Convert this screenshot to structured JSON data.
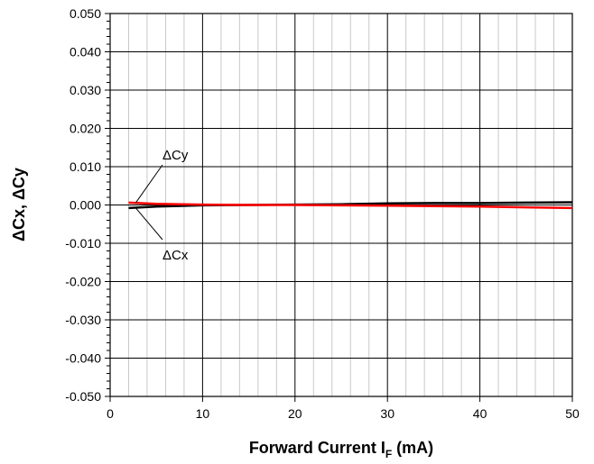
{
  "chart_data": {
    "type": "line",
    "xlabel_main": "Forward Current I",
    "xlabel_sub": "F",
    "xlabel_unit": " (mA)",
    "ylabel": "ΔCx, ΔCy",
    "xlim": [
      0,
      50
    ],
    "ylim": [
      -0.05,
      0.05
    ],
    "x_ticks": [
      "0",
      "10",
      "20",
      "30",
      "40",
      "50"
    ],
    "y_ticks": [
      "-0.050",
      "-0.040",
      "-0.030",
      "-0.020",
      "-0.010",
      "0.000",
      "0.010",
      "0.020",
      "0.030",
      "0.040",
      "0.050"
    ],
    "grid": true,
    "series": [
      {
        "name": "ΔCx",
        "color": "#000000",
        "x": [
          2,
          5,
          10,
          15,
          20,
          25,
          30,
          35,
          40,
          45,
          50
        ],
        "y": [
          -0.0008,
          -0.0004,
          -0.0001,
          0.0,
          0.0001,
          0.0002,
          0.0004,
          0.0005,
          0.0005,
          0.0006,
          0.0007
        ]
      },
      {
        "name": "ΔCy",
        "color": "#ff0000",
        "x": [
          2,
          5,
          10,
          15,
          20,
          25,
          30,
          35,
          40,
          45,
          50
        ],
        "y": [
          0.0006,
          0.0003,
          0.0001,
          0.0,
          0.0,
          -0.0001,
          -0.0002,
          -0.0003,
          -0.0004,
          -0.0006,
          -0.0008
        ]
      }
    ],
    "annotations": [
      {
        "text": "ΔCy",
        "series": "ΔCy"
      },
      {
        "text": "ΔCx",
        "series": "ΔCx"
      }
    ]
  }
}
